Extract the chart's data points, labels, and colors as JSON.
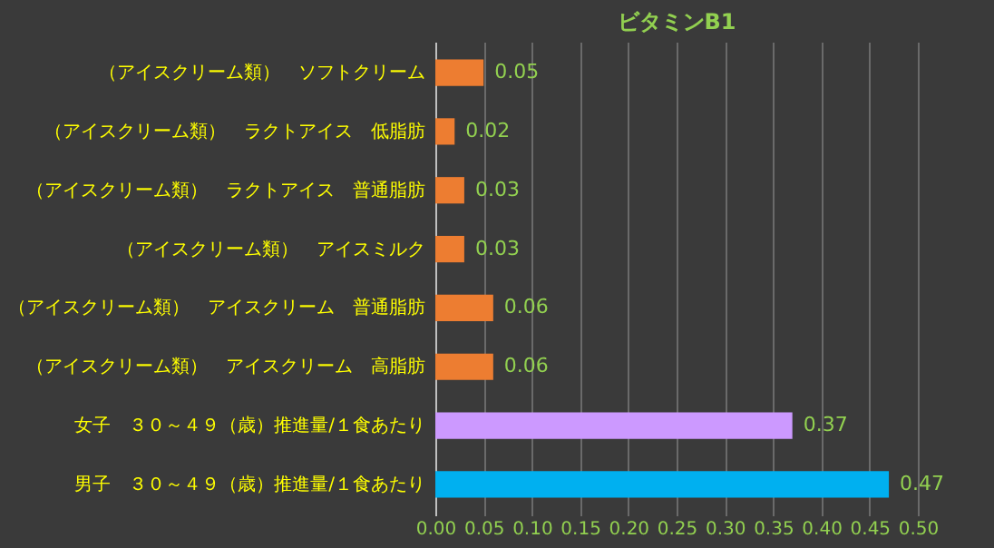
{
  "chart_data": {
    "type": "bar",
    "orientation": "horizontal",
    "title": "ビタミンB1",
    "categories": [
      "（アイスクリーム類）　ソフトクリーム",
      "（アイスクリーム類）　ラクトアイス　低脂肪",
      "（アイスクリーム類）　ラクトアイス　普通脂肪",
      "（アイスクリーム類）　アイスミルク",
      "（アイスクリーム類）　アイスクリーム　普通脂肪",
      "（アイスクリーム類）　アイスクリーム　高脂肪",
      "女子　３０～４９（歳）推進量/１食あたり",
      "男子　３０～４９（歳）推進量/１食あたり"
    ],
    "values": [
      0.05,
      0.02,
      0.03,
      0.03,
      0.06,
      0.06,
      0.37,
      0.47
    ],
    "colors": [
      "#ed7d31",
      "#ed7d31",
      "#ed7d31",
      "#ed7d31",
      "#ed7d31",
      "#ed7d31",
      "#cc99ff",
      "#00b0f0"
    ],
    "xlim": [
      0,
      0.5
    ],
    "xticks": [
      {
        "value": 0,
        "label": "0.00"
      },
      {
        "value": 0.05,
        "label": "0.05"
      },
      {
        "value": 0.1,
        "label": "0.10"
      },
      {
        "value": 0.15,
        "label": "0.15"
      },
      {
        "value": 0.2,
        "label": "0.20"
      },
      {
        "value": 0.25,
        "label": "0.25"
      },
      {
        "value": 0.3,
        "label": "0.30"
      },
      {
        "value": 0.35,
        "label": "0.35"
      },
      {
        "value": 0.4,
        "label": "0.40"
      },
      {
        "value": 0.45,
        "label": "0.45"
      },
      {
        "value": 0.5,
        "label": "0.50"
      }
    ],
    "grid": "x",
    "data_labels": true
  }
}
